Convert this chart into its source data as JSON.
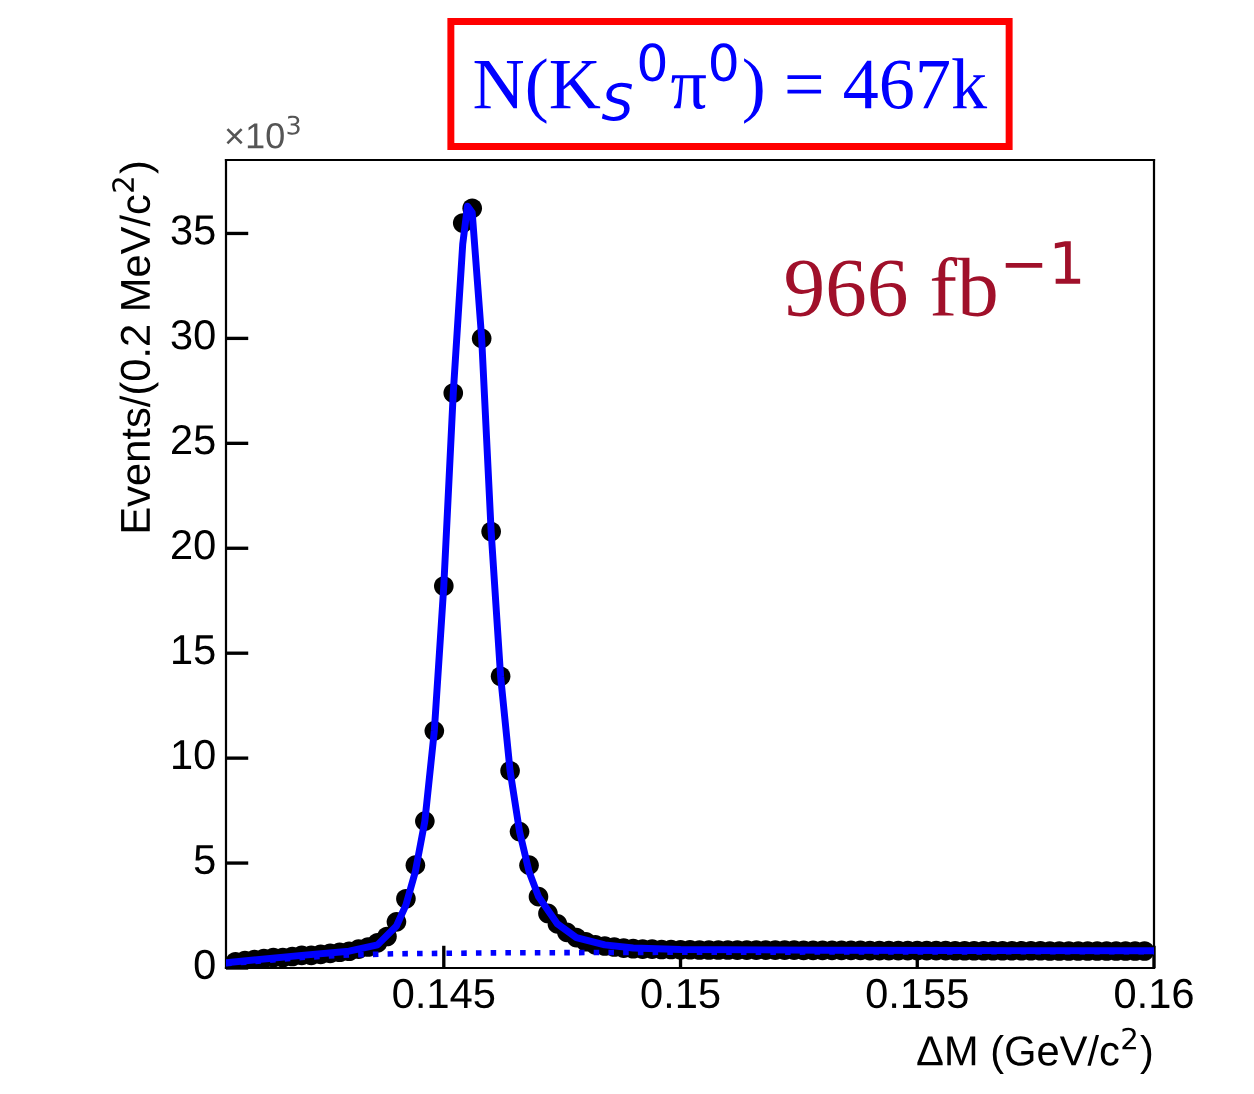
{
  "chart_data": {
    "type": "scatter",
    "xlabel": "ΔM (GeV/c$^{2}$)",
    "ylabel": "Events/(0.2 MeV/c$^{2}$)",
    "annotations": [
      "×10$^{3}$",
      "N(K$_{S}$$^{0}$π$^{0}$) = 467k",
      "966 fb$^{−1}$"
    ],
    "xlim": [
      0.1404,
      0.16
    ],
    "ylim": [
      0,
      38.5
    ],
    "xticks": [
      0.145,
      0.15,
      0.155,
      0.16
    ],
    "yticks": [
      0,
      5,
      10,
      15,
      20,
      25,
      30,
      35
    ],
    "grid": false,
    "legend": false,
    "series": [
      {
        "type": "scatter",
        "color": "#000000",
        "marker": "circle",
        "x": [
          0.1406,
          0.1408,
          0.141,
          0.1412,
          0.1414,
          0.1416,
          0.1418,
          0.142,
          0.1422,
          0.1424,
          0.1426,
          0.1428,
          0.143,
          0.1432,
          0.1434,
          0.1436,
          0.1438,
          0.144,
          0.1442,
          0.1444,
          0.1446,
          0.1448,
          0.145,
          0.1452,
          0.1454,
          0.1456,
          0.1458,
          0.146,
          0.1462,
          0.1464,
          0.1466,
          0.1468,
          0.147,
          0.1472,
          0.1474,
          0.1476,
          0.1478,
          0.148,
          0.1482,
          0.1484,
          0.1486,
          0.1488,
          0.149,
          0.1492,
          0.1494,
          0.1496,
          0.1498,
          0.15,
          0.1502,
          0.1504,
          0.1506,
          0.1508,
          0.151,
          0.1512,
          0.1514,
          0.1516,
          0.1518,
          0.152,
          0.1522,
          0.1524,
          0.1526,
          0.1528,
          0.153,
          0.1532,
          0.1534,
          0.1536,
          0.1538,
          0.154,
          0.1542,
          0.1544,
          0.1546,
          0.1548,
          0.155,
          0.1552,
          0.1554,
          0.1556,
          0.1558,
          0.156,
          0.1562,
          0.1564,
          0.1566,
          0.1568,
          0.157,
          0.1572,
          0.1574,
          0.1576,
          0.1578,
          0.158,
          0.1582,
          0.1584,
          0.1586,
          0.1588,
          0.159,
          0.1592,
          0.1594,
          0.1596,
          0.1598
        ],
        "values": [
          0.3,
          0.35,
          0.4,
          0.45,
          0.5,
          0.5,
          0.55,
          0.6,
          0.6,
          0.65,
          0.7,
          0.75,
          0.8,
          0.9,
          1.0,
          1.2,
          1.5,
          2.2,
          3.3,
          4.9,
          7.0,
          11.3,
          18.2,
          27.4,
          35.5,
          36.2,
          30.0,
          20.8,
          13.9,
          9.4,
          6.5,
          4.9,
          3.4,
          2.6,
          2.1,
          1.7,
          1.45,
          1.25,
          1.1,
          1.05,
          1.0,
          0.95,
          0.92,
          0.9,
          0.9,
          0.88,
          0.88,
          0.87,
          0.87,
          0.86,
          0.86,
          0.86,
          0.86,
          0.85,
          0.85,
          0.85,
          0.85,
          0.85,
          0.85,
          0.85,
          0.84,
          0.84,
          0.84,
          0.84,
          0.84,
          0.84,
          0.84,
          0.83,
          0.83,
          0.83,
          0.83,
          0.83,
          0.83,
          0.83,
          0.83,
          0.83,
          0.82,
          0.82,
          0.82,
          0.82,
          0.82,
          0.82,
          0.82,
          0.82,
          0.82,
          0.82,
          0.81,
          0.81,
          0.81,
          0.81,
          0.81,
          0.81,
          0.81,
          0.81,
          0.81,
          0.81,
          0.81
        ]
      },
      {
        "type": "line",
        "color": "#0000ff",
        "line_style": "solid",
        "marker": "none",
        "x": [
          0.1404,
          0.142,
          0.143,
          0.1436,
          0.144,
          0.1442,
          0.1444,
          0.1446,
          0.1448,
          0.145,
          0.1452,
          0.1454,
          0.1455,
          0.1456,
          0.1458,
          0.146,
          0.1462,
          0.1464,
          0.1466,
          0.1468,
          0.147,
          0.1474,
          0.1478,
          0.1484,
          0.149,
          0.15,
          0.153,
          0.156,
          0.16
        ],
        "values": [
          0.25,
          0.6,
          0.8,
          1.1,
          2.0,
          3.0,
          4.6,
          7.0,
          11.3,
          18.2,
          27.4,
          34.5,
          36.3,
          36.0,
          30.0,
          20.8,
          13.9,
          9.4,
          6.5,
          4.6,
          3.4,
          2.1,
          1.45,
          1.1,
          0.95,
          0.88,
          0.85,
          0.83,
          0.82
        ]
      },
      {
        "type": "line",
        "color": "#0000ff",
        "line_style": "dotted",
        "marker": "none",
        "x": [
          0.1404,
          0.142,
          0.143,
          0.144,
          0.146,
          0.15,
          0.16
        ],
        "values": [
          0.2,
          0.5,
          0.62,
          0.68,
          0.72,
          0.75,
          0.78
        ]
      }
    ]
  }
}
